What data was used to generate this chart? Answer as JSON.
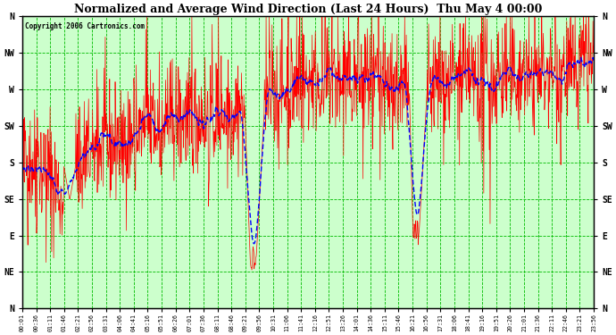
{
  "title": "Normalized and Average Wind Direction (Last 24 Hours)  Thu May 4 00:00",
  "copyright": "Copyright 2006 Cartronics.com",
  "background_color": "#ffffff",
  "plot_bg_color": "#ccffcc",
  "grid_color": "#00bb00",
  "red_line_color": "#ff0000",
  "blue_line_color": "#0000ff",
  "ytick_labels": [
    "N",
    "NW",
    "W",
    "SW",
    "S",
    "SE",
    "E",
    "NE",
    "N"
  ],
  "ytick_values": [
    360,
    315,
    270,
    225,
    180,
    135,
    90,
    45,
    0
  ],
  "ylim": [
    0,
    360
  ],
  "xtick_labels": [
    "00:01",
    "00:36",
    "01:11",
    "01:46",
    "02:21",
    "02:56",
    "03:31",
    "04:06",
    "04:41",
    "05:16",
    "05:51",
    "06:26",
    "07:01",
    "07:36",
    "08:11",
    "08:46",
    "09:21",
    "09:56",
    "10:31",
    "11:06",
    "11:41",
    "12:16",
    "12:51",
    "13:26",
    "14:01",
    "14:36",
    "15:11",
    "15:46",
    "16:21",
    "16:56",
    "17:31",
    "18:06",
    "18:41",
    "19:16",
    "19:51",
    "20:26",
    "21:01",
    "21:36",
    "22:11",
    "22:46",
    "23:21",
    "23:56"
  ],
  "num_points": 1440,
  "seed": 42,
  "figsize": [
    6.9,
    3.75
  ],
  "dpi": 100
}
